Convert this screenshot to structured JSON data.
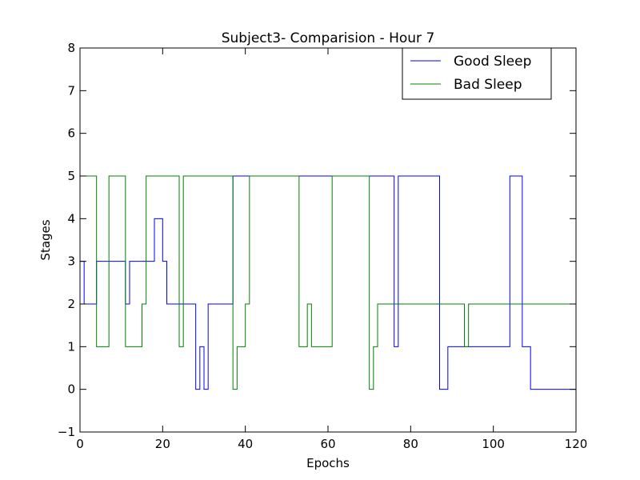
{
  "chart_data": {
    "type": "line",
    "title": "Subject3- Comparision - Hour 7",
    "xlabel": "Epochs",
    "ylabel": "Stages",
    "xlim": [
      0,
      120
    ],
    "ylim": [
      -1,
      8
    ],
    "xticks": [
      "0",
      "20",
      "40",
      "60",
      "80",
      "100",
      "120"
    ],
    "yticks": [
      "−1",
      "0",
      "1",
      "2",
      "3",
      "4",
      "5",
      "6",
      "7",
      "8"
    ],
    "grid": false,
    "legend_position": "top-right",
    "step": "post",
    "x": [
      0,
      1,
      2,
      3,
      4,
      5,
      6,
      7,
      8,
      9,
      10,
      11,
      12,
      13,
      14,
      15,
      16,
      17,
      18,
      19,
      20,
      21,
      22,
      23,
      24,
      25,
      26,
      27,
      28,
      29,
      30,
      31,
      32,
      33,
      34,
      35,
      36,
      37,
      38,
      39,
      40,
      41,
      42,
      43,
      44,
      45,
      46,
      47,
      48,
      49,
      50,
      51,
      52,
      53,
      54,
      55,
      56,
      57,
      58,
      59,
      60,
      61,
      62,
      63,
      64,
      65,
      66,
      67,
      68,
      69,
      70,
      71,
      72,
      73,
      74,
      75,
      76,
      77,
      78,
      79,
      80,
      81,
      82,
      83,
      84,
      85,
      86,
      87,
      88,
      89,
      90,
      91,
      92,
      93,
      94,
      95,
      96,
      97,
      98,
      99,
      100,
      101,
      102,
      103,
      104,
      105,
      106,
      107,
      108,
      109,
      110,
      111,
      112,
      113,
      114,
      115,
      116,
      117,
      118,
      119,
      120
    ],
    "series": [
      {
        "name": "Good Sleep",
        "color": "#0000ff",
        "values": [
          3,
          2,
          2,
          2,
          3,
          3,
          3,
          3,
          3,
          3,
          3,
          2,
          3,
          3,
          3,
          3,
          3,
          3,
          4,
          4,
          3,
          2,
          2,
          2,
          2,
          2,
          2,
          2,
          0,
          1,
          0,
          2,
          2,
          2,
          2,
          2,
          2,
          5,
          5,
          5,
          5,
          5,
          5,
          5,
          5,
          5,
          5,
          5,
          5,
          5,
          5,
          5,
          5,
          5,
          5,
          5,
          5,
          5,
          5,
          5,
          5,
          5,
          5,
          5,
          5,
          5,
          5,
          5,
          5,
          5,
          5,
          5,
          5,
          5,
          5,
          5,
          1,
          5,
          5,
          5,
          5,
          5,
          5,
          5,
          5,
          5,
          5,
          0,
          0,
          1,
          1,
          1,
          1,
          1,
          1,
          1,
          1,
          1,
          1,
          1,
          1,
          1,
          1,
          1,
          5,
          5,
          5,
          1,
          1,
          0,
          0,
          0,
          0,
          0,
          0,
          0,
          0,
          0,
          0,
          0,
          0
        ]
      },
      {
        "name": "Bad Sleep",
        "color": "#008000",
        "values": [
          5,
          5,
          5,
          5,
          1,
          1,
          1,
          5,
          5,
          5,
          5,
          1,
          1,
          1,
          1,
          2,
          5,
          5,
          5,
          5,
          5,
          5,
          5,
          5,
          1,
          5,
          5,
          5,
          5,
          5,
          5,
          5,
          5,
          5,
          5,
          5,
          5,
          0,
          1,
          1,
          2,
          5,
          5,
          5,
          5,
          5,
          5,
          5,
          5,
          5,
          5,
          5,
          5,
          1,
          1,
          2,
          1,
          1,
          1,
          1,
          1,
          5,
          5,
          5,
          5,
          5,
          5,
          5,
          5,
          5,
          0,
          1,
          2,
          2,
          2,
          2,
          2,
          2,
          2,
          2,
          2,
          2,
          2,
          2,
          2,
          2,
          2,
          2,
          2,
          2,
          2,
          2,
          2,
          1,
          2,
          2,
          2,
          2,
          2,
          2,
          2,
          2,
          2,
          2,
          2,
          2,
          2,
          2,
          2,
          2,
          2,
          2,
          2,
          2,
          2,
          2,
          2,
          2,
          2,
          2,
          2
        ]
      }
    ]
  }
}
